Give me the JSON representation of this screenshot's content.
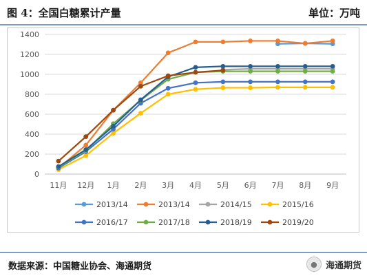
{
  "header": {
    "title": "图 4：全国白糖累计产量",
    "unit": "单位：万吨"
  },
  "footer": {
    "source": "数据来源：中国糖业协会、海通期货",
    "brand": "海通期货",
    "brand_icon": "wechat-icon"
  },
  "chart_data": {
    "type": "line",
    "title": "",
    "xlabel": "",
    "ylabel": "",
    "categories": [
      "11月",
      "12月",
      "1月",
      "2月",
      "3月",
      "4月",
      "5月",
      "6月",
      "7月",
      "8月",
      "9月"
    ],
    "ylim": [
      0,
      1400
    ],
    "yticks": [
      0,
      200,
      400,
      600,
      800,
      1000,
      1200,
      1400
    ],
    "grid": true,
    "legend_position": "bottom",
    "series": [
      {
        "name": "2013/14",
        "color": "#5b9bd5",
        "values": [
          null,
          null,
          null,
          null,
          null,
          null,
          null,
          null,
          1305,
          1310,
          1305
        ]
      },
      {
        "name": "2013/14",
        "color": "#ed7d31",
        "values": [
          60,
          290,
          640,
          915,
          1215,
          1325,
          1325,
          1335,
          1335,
          1310,
          1335
        ]
      },
      {
        "name": "2014/15",
        "color": "#a5a5a5",
        "values": [
          null,
          null,
          null,
          null,
          null,
          null,
          1045,
          1055,
          1055,
          1055,
          1055
        ]
      },
      {
        "name": "2015/16",
        "color": "#ffc000",
        "values": [
          45,
          185,
          410,
          610,
          800,
          850,
          865,
          865,
          870,
          870,
          870
        ]
      },
      {
        "name": "2016/17",
        "color": "#4472c4",
        "values": [
          60,
          225,
          450,
          710,
          860,
          915,
          925,
          925,
          925,
          925,
          925
        ]
      },
      {
        "name": "2017/18",
        "color": "#70ad47",
        "values": [
          70,
          235,
          505,
          740,
          950,
          1020,
          1030,
          1030,
          1030,
          1030,
          1030
        ]
      },
      {
        "name": "2018/19",
        "color": "#255e91",
        "values": [
          75,
          245,
          480,
          745,
          975,
          1070,
          1080,
          1080,
          1080,
          1080,
          1080
        ]
      },
      {
        "name": "2019/20",
        "color": "#9e480e",
        "values": [
          130,
          375,
          640,
          880,
          985,
          1020,
          1040,
          null,
          null,
          null,
          null
        ]
      }
    ]
  }
}
